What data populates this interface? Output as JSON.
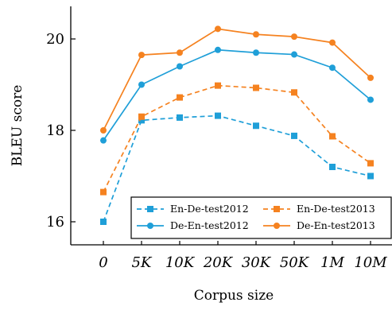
{
  "chart_data": {
    "type": "line",
    "xlabel": "Corpus size",
    "ylabel": "BLEU score",
    "categories": [
      "0",
      "5K",
      "10K",
      "20K",
      "30K",
      "50K",
      "1M",
      "10M"
    ],
    "y_ticks": [
      "16",
      "18",
      "20"
    ],
    "ylim": [
      15.5,
      20.8
    ],
    "grid": false,
    "legend_position": "bottom-right",
    "series": [
      {
        "name": "En-De-test2012",
        "color": "#1f9fd8",
        "marker": "square",
        "dashed": true,
        "values": [
          16.0,
          18.22,
          18.28,
          18.32,
          18.1,
          17.88,
          17.2,
          17.0
        ]
      },
      {
        "name": "En-De-test2013",
        "color": "#f58220",
        "marker": "square",
        "dashed": true,
        "values": [
          16.65,
          18.3,
          18.72,
          18.98,
          18.93,
          18.83,
          17.87,
          17.28
        ]
      },
      {
        "name": "De-En-test2012",
        "color": "#1f9fd8",
        "marker": "circle",
        "dashed": false,
        "values": [
          17.78,
          19.0,
          19.4,
          19.76,
          19.7,
          19.66,
          19.37,
          18.67
        ]
      },
      {
        "name": "De-En-test2013",
        "color": "#f58220",
        "marker": "circle",
        "dashed": false,
        "values": [
          18.0,
          19.65,
          19.7,
          20.22,
          20.1,
          20.05,
          19.92,
          19.15
        ]
      }
    ]
  }
}
